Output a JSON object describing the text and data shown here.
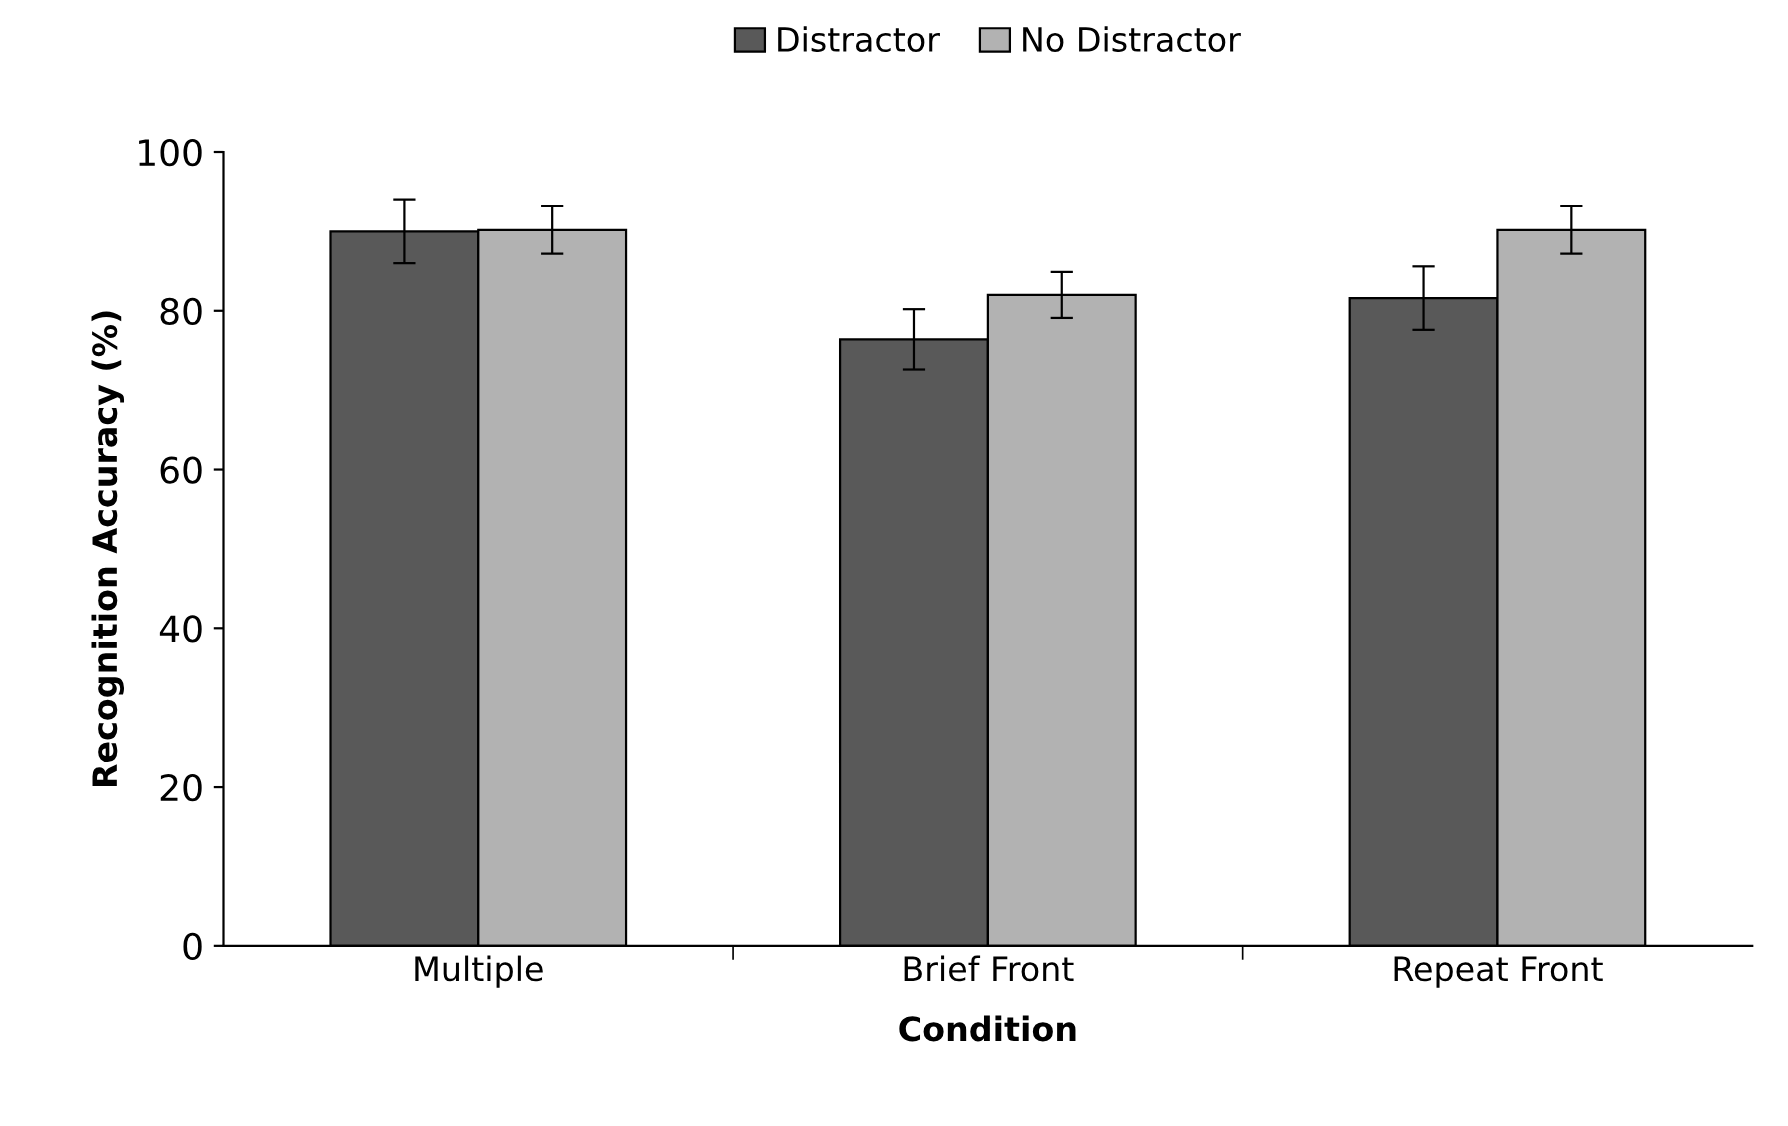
{
  "chart_data": {
    "type": "bar",
    "xlabel": "Condition",
    "ylabel": "Recognition Accuracy (%)",
    "categories": [
      "Multiple",
      "Brief Front",
      "Repeat Front"
    ],
    "series": [
      {
        "name": "Distractor",
        "color": "#595959",
        "values": [
          90,
          76.4,
          81.6
        ],
        "errors": [
          4,
          3.8,
          4
        ]
      },
      {
        "name": "No Distractor",
        "color": "#b2b2b2",
        "values": [
          90.2,
          82,
          90.2
        ],
        "errors": [
          3,
          2.9,
          3
        ]
      }
    ],
    "ylim": [
      0,
      100
    ],
    "yticks": [
      0,
      20,
      40,
      60,
      80,
      100
    ],
    "grid": false,
    "legend": "top"
  }
}
